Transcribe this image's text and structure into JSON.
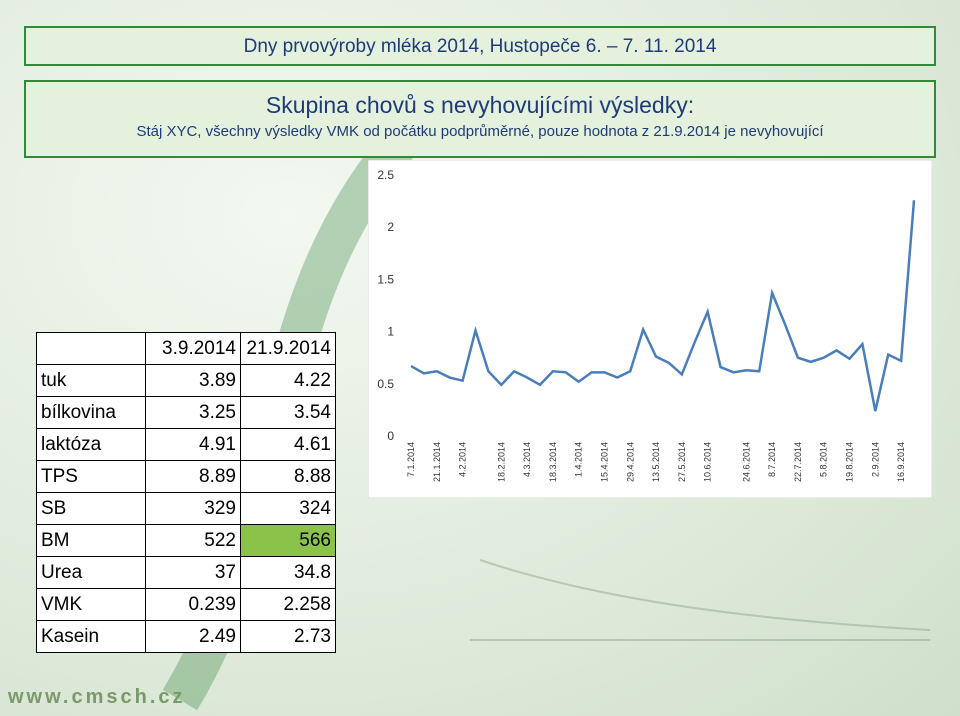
{
  "header": {
    "title": "Dny prvovýroby mléka 2014, Hustopeče  6. – 7. 11. 2014",
    "subtitle": "Skupina chovů s nevyhovujícími výsledky:",
    "note": "Stáj XYC, všechny výsledky VMK od počátku podprůměrné, pouze hodnota z 21.9.2014 je nevyhovující"
  },
  "table": {
    "columns": [
      "3.9.2014",
      "21.9.2014"
    ],
    "rows": [
      [
        "tuk",
        3.89,
        4.22
      ],
      [
        "bílkovina",
        3.25,
        3.54
      ],
      [
        "laktóza",
        4.91,
        4.61
      ],
      [
        "TPS",
        8.89,
        8.88
      ],
      [
        "SB",
        329,
        324
      ],
      [
        "BM",
        522,
        566
      ],
      [
        "Urea",
        37,
        34.8
      ],
      [
        "VMK",
        0.239,
        2.258
      ],
      [
        "Kasein",
        2.49,
        2.73
      ]
    ]
  },
  "chart_data": {
    "type": "line",
    "categories": [
      "7.1.2014",
      null,
      "21.1.2014",
      null,
      "4.2.2014",
      null,
      null,
      "18.2.2014",
      null,
      "4.3.2014",
      null,
      "18.3.2014",
      null,
      "1.4.2014",
      null,
      "15.4.2014",
      null,
      "29.4.2014",
      null,
      "13.5.2014",
      null,
      "27.5.2014",
      null,
      "10.6.2014",
      null,
      null,
      "24.6.2014",
      null,
      "8.7.2014",
      null,
      "22.7.2014",
      null,
      "5.8.2014",
      null,
      "19.8.2014",
      null,
      "2.9.2014",
      null,
      "16.9.2014",
      null
    ],
    "series": [
      {
        "name": "VMK",
        "color": "#4a7ebb",
        "values": [
          0.67,
          0.6,
          0.62,
          0.56,
          0.53,
          1.01,
          0.62,
          0.49,
          0.62,
          0.56,
          0.49,
          0.62,
          0.61,
          0.52,
          0.61,
          0.61,
          0.56,
          0.62,
          1.02,
          0.76,
          0.7,
          0.59,
          0.9,
          1.19,
          0.66,
          0.61,
          0.63,
          0.62,
          1.37,
          1.07,
          0.75,
          0.71,
          0.75,
          0.82,
          0.74,
          0.88,
          0.239,
          0.78,
          0.72,
          2.258
        ]
      }
    ],
    "ylim": [
      0,
      2.5
    ],
    "yticks": [
      0,
      0.5,
      1,
      1.5,
      2,
      2.5
    ],
    "grid": false
  },
  "footer": "www.cmsch.cz"
}
